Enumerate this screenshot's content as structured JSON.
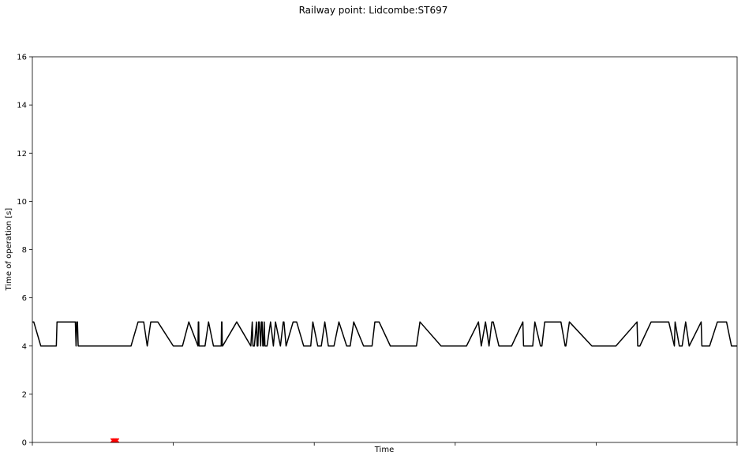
{
  "chart_data": {
    "type": "line",
    "title": "Railway point: Lidcombe:ST697",
    "xlabel": "Time",
    "ylabel": "Time of operation [s]",
    "ylim": [
      0,
      16
    ],
    "yticks": [
      0,
      2,
      4,
      6,
      8,
      10,
      12,
      14,
      16
    ],
    "xlim": [
      0,
      1000
    ],
    "xticks": [
      0,
      200,
      400,
      600,
      800,
      1000
    ],
    "grid": false,
    "series": [
      {
        "color": "#000000",
        "x": [
          0,
          2,
          12,
          34,
          35,
          61,
          62,
          63,
          64,
          65,
          140,
          150,
          158,
          163,
          168,
          178,
          200,
          213,
          222,
          235,
          235.5,
          236,
          236.5,
          237,
          245,
          250,
          257,
          268,
          268.5,
          269,
          269.5,
          270,
          290,
          310,
          312,
          313,
          315,
          318,
          319,
          320,
          321,
          322,
          324,
          325,
          326,
          327,
          328,
          329,
          330,
          333,
          338,
          342,
          345,
          352,
          356,
          357,
          360,
          370,
          375,
          385,
          395,
          398,
          405,
          410,
          415,
          420,
          428,
          435,
          446,
          451,
          456,
          470,
          482,
          486,
          492,
          508,
          516,
          545,
          550,
          580,
          616,
          633,
          637,
          643,
          648,
          652,
          654,
          662,
          680,
          696,
          697,
          710,
          713,
          721,
          723,
          727,
          750,
          756,
          757,
          762,
          794,
          828,
          858,
          859,
          862,
          878,
          903,
          911,
          912,
          918,
          922,
          927,
          932,
          949,
          950,
          961,
          972,
          985,
          992,
          996,
          1000
        ],
        "values": [
          5,
          5,
          4,
          4,
          5,
          5,
          4,
          5,
          5,
          4,
          4,
          5,
          5,
          4,
          5,
          5,
          4,
          4,
          5,
          4,
          5,
          5,
          4,
          4,
          4,
          5,
          4,
          4,
          5,
          5,
          4,
          4,
          5,
          4,
          5,
          4,
          4,
          5,
          4,
          4,
          5,
          5,
          4,
          5,
          5,
          4,
          4,
          5,
          4,
          4,
          5,
          4,
          5,
          4,
          5,
          5,
          4,
          5,
          5,
          4,
          4,
          5,
          4,
          4,
          5,
          4,
          4,
          5,
          4,
          4,
          5,
          4,
          4,
          5,
          5,
          4,
          4,
          4,
          5,
          4,
          4,
          5,
          4,
          5,
          4,
          5,
          5,
          4,
          4,
          5,
          4,
          4,
          5,
          4,
          4,
          5,
          5,
          4,
          4,
          5,
          4,
          4,
          5,
          4,
          4,
          5,
          5,
          4,
          5,
          4,
          4,
          5,
          4,
          5,
          4,
          4,
          5,
          5,
          4,
          4,
          4
        ]
      },
      {
        "color": "#ff0000",
        "marker": "x",
        "x": [
          114,
          115.5,
          117,
          118.5,
          120
        ],
        "values": [
          0.08,
          0.08,
          0.08,
          0.08,
          0.08
        ]
      }
    ]
  }
}
